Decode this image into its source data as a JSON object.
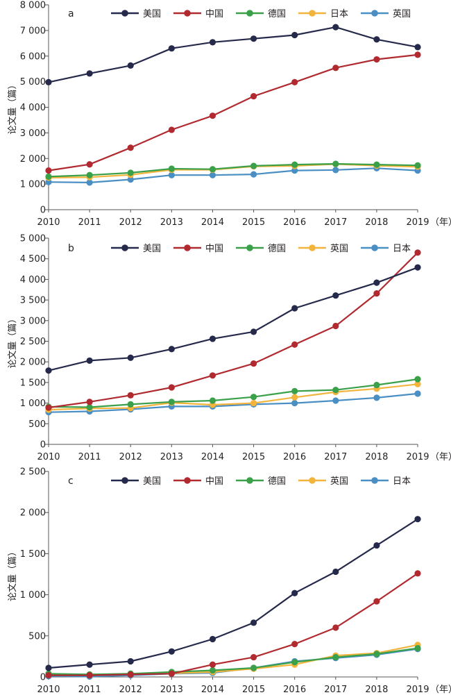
{
  "chart_data": [
    {
      "type": "line",
      "panel_label": "a",
      "x": [
        "2010",
        "2011",
        "2012",
        "2013",
        "2014",
        "2015",
        "2016",
        "2017",
        "2018",
        "2019"
      ],
      "x_unit": "（年）",
      "ylabel": "论文量（篇）",
      "ylim": [
        0,
        8000
      ],
      "yticks": [
        0,
        1000,
        2000,
        3000,
        4000,
        5000,
        6000,
        7000,
        8000
      ],
      "ytick_labels": [
        "0",
        "1 000",
        "2 000",
        "3 000",
        "4 000",
        "5 000",
        "6 000",
        "7 000",
        "8 000"
      ],
      "legend_position": "top",
      "series": [
        {
          "name": "美国",
          "color": "#25294a",
          "values": [
            4980,
            5320,
            5630,
            6300,
            6540,
            6680,
            6820,
            7130,
            6650,
            6350
          ]
        },
        {
          "name": "中国",
          "color": "#b02a30",
          "values": [
            1530,
            1770,
            2420,
            3120,
            3670,
            4430,
            4980,
            5540,
            5870,
            6050
          ]
        },
        {
          "name": "德国",
          "color": "#3aa049",
          "values": [
            1290,
            1350,
            1440,
            1600,
            1580,
            1710,
            1760,
            1790,
            1760,
            1730
          ]
        },
        {
          "name": "日本",
          "color": "#f2b43c",
          "values": [
            1250,
            1270,
            1360,
            1560,
            1560,
            1690,
            1710,
            1780,
            1720,
            1680
          ]
        },
        {
          "name": "英国",
          "color": "#4a8fc4",
          "values": [
            1080,
            1060,
            1180,
            1350,
            1350,
            1380,
            1530,
            1550,
            1620,
            1530
          ]
        }
      ]
    },
    {
      "type": "line",
      "panel_label": "b",
      "x": [
        "2010",
        "2011",
        "2012",
        "2013",
        "2014",
        "2015",
        "2016",
        "2017",
        "2018",
        "2019"
      ],
      "x_unit": "（年）",
      "ylabel": "论文量（篇）",
      "ylim": [
        0,
        5000
      ],
      "yticks": [
        0,
        500,
        1000,
        1500,
        2000,
        2500,
        3000,
        3500,
        4000,
        4500,
        5000
      ],
      "ytick_labels": [
        "0",
        "500",
        "1 000",
        "1 500",
        "2 000",
        "2 500",
        "3 000",
        "3 500",
        "4 000",
        "4 500",
        "5 000"
      ],
      "legend_position": "top",
      "series": [
        {
          "name": "美国",
          "color": "#25294a",
          "values": [
            1790,
            2030,
            2100,
            2310,
            2560,
            2730,
            3300,
            3610,
            3920,
            4290
          ]
        },
        {
          "name": "中国",
          "color": "#b02a30",
          "values": [
            890,
            1030,
            1190,
            1380,
            1670,
            1960,
            2420,
            2870,
            3660,
            4650
          ]
        },
        {
          "name": "德国",
          "color": "#3aa049",
          "values": [
            910,
            900,
            970,
            1030,
            1060,
            1150,
            1290,
            1320,
            1440,
            1580
          ]
        },
        {
          "name": "英国",
          "color": "#f2b43c",
          "values": [
            840,
            870,
            880,
            1010,
            960,
            1000,
            1140,
            1270,
            1350,
            1460
          ]
        },
        {
          "name": "日本",
          "color": "#4a8fc4",
          "values": [
            780,
            800,
            850,
            920,
            920,
            970,
            1000,
            1060,
            1130,
            1230
          ]
        }
      ]
    },
    {
      "type": "line",
      "panel_label": "c",
      "x": [
        "2010",
        "2011",
        "2012",
        "2013",
        "2014",
        "2015",
        "2016",
        "2017",
        "2018",
        "2019"
      ],
      "x_unit": "（年）",
      "ylabel": "论文量（篇）",
      "ylim": [
        0,
        2500
      ],
      "yticks": [
        0,
        500,
        1000,
        1500,
        2000,
        2500
      ],
      "ytick_labels": [
        "0",
        "500",
        "1 000",
        "1 500",
        "2 000",
        "2 500"
      ],
      "legend_position": "top",
      "series": [
        {
          "name": "美国",
          "color": "#25294a",
          "values": [
            110,
            150,
            190,
            310,
            460,
            660,
            1020,
            1280,
            1600,
            1920
          ]
        },
        {
          "name": "中国",
          "color": "#b02a30",
          "values": [
            20,
            20,
            30,
            40,
            150,
            240,
            400,
            600,
            920,
            1260
          ]
        },
        {
          "name": "德国",
          "color": "#3aa049",
          "values": [
            40,
            30,
            40,
            60,
            80,
            110,
            180,
            240,
            280,
            350
          ]
        },
        {
          "name": "英国",
          "color": "#f2b43c",
          "values": [
            25,
            30,
            35,
            45,
            60,
            100,
            150,
            260,
            290,
            390
          ]
        },
        {
          "name": "日本",
          "color": "#4a8fc4",
          "values": [
            10,
            5,
            20,
            40,
            50,
            110,
            190,
            230,
            270,
            340
          ]
        }
      ]
    }
  ]
}
